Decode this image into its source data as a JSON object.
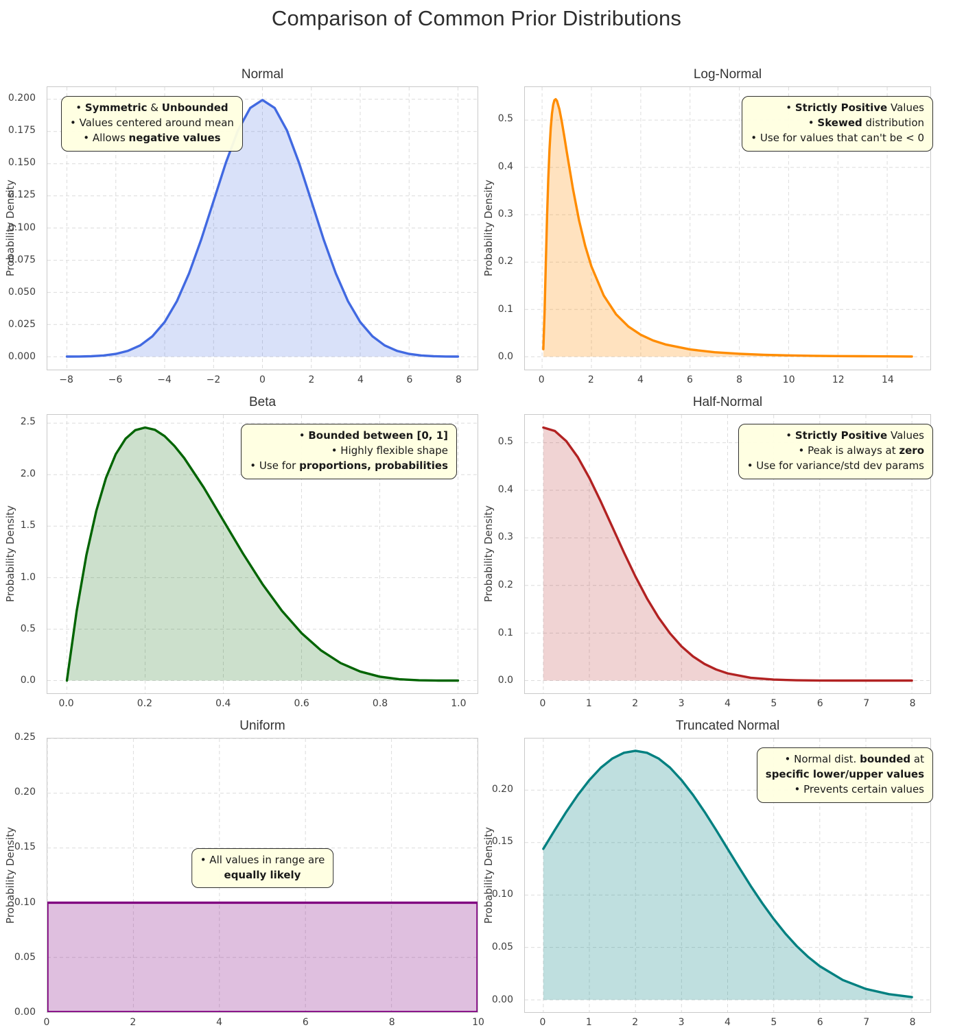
{
  "title": "Comparison of Common Prior Distributions",
  "chart_data": [
    {
      "id": "normal",
      "type": "area",
      "title": "Normal",
      "xlabel": "",
      "ylabel": "Probability Density",
      "line_color": "#4169e1",
      "fill_opacity": 0.2,
      "grid": true,
      "legend": false,
      "xlim": [
        -8.8,
        8.8
      ],
      "ylim": [
        -0.01,
        0.2095
      ],
      "xticks": [
        -8,
        -6,
        -4,
        -2,
        0,
        2,
        4,
        6,
        8
      ],
      "xtick_labels": [
        "−8",
        "−6",
        "−4",
        "−2",
        "0",
        "2",
        "4",
        "6",
        "8"
      ],
      "yticks": [
        0,
        0.025,
        0.05,
        0.075,
        0.1,
        0.125,
        0.15,
        0.175,
        0.2
      ],
      "ytick_labels": [
        "0.000",
        "0.025",
        "0.050",
        "0.075",
        "0.100",
        "0.125",
        "0.150",
        "0.175",
        "0.200"
      ],
      "x": [
        -8,
        -7.5,
        -7,
        -6.5,
        -6,
        -5.5,
        -5,
        -4.5,
        -4,
        -3.5,
        -3,
        -2.5,
        -2,
        -1.5,
        -1,
        -0.5,
        0,
        0.5,
        1,
        1.5,
        2,
        2.5,
        3,
        3.5,
        4,
        4.5,
        5,
        5.5,
        6,
        6.5,
        7,
        7.5,
        8
      ],
      "y": [
        0.0001,
        0.0002,
        0.0004,
        0.001,
        0.0022,
        0.0046,
        0.0088,
        0.0159,
        0.027,
        0.0431,
        0.0648,
        0.0913,
        0.121,
        0.1506,
        0.176,
        0.1933,
        0.1995,
        0.1933,
        0.176,
        0.1506,
        0.121,
        0.0913,
        0.0648,
        0.0431,
        0.027,
        0.0159,
        0.0088,
        0.0046,
        0.0022,
        0.001,
        0.0004,
        0.0002,
        0.0001
      ],
      "annotation": {
        "align": "center",
        "lines": [
          [
            {
              "t": "• "
            },
            {
              "t": "Symmetric",
              "b": true
            },
            {
              "t": " & "
            },
            {
              "t": "Unbounded",
              "b": true
            }
          ],
          [
            {
              "t": "• Values centered around mean"
            }
          ],
          [
            {
              "t": "• Allows "
            },
            {
              "t": "negative values",
              "b": true
            }
          ]
        ]
      }
    },
    {
      "id": "lognormal",
      "type": "area",
      "title": "Log-Normal",
      "xlabel": "",
      "ylabel": "Probability Density",
      "line_color": "#ff8c00",
      "fill_opacity": 0.25,
      "grid": true,
      "legend": false,
      "xlim": [
        -0.7,
        15.75
      ],
      "ylim": [
        -0.0271,
        0.5696
      ],
      "xticks": [
        0,
        2,
        4,
        6,
        8,
        10,
        12,
        14
      ],
      "xtick_labels": [
        "0",
        "2",
        "4",
        "6",
        "8",
        "10",
        "12",
        "14"
      ],
      "yticks": [
        0,
        0.1,
        0.2,
        0.3,
        0.4,
        0.5
      ],
      "ytick_labels": [
        "0.0",
        "0.1",
        "0.2",
        "0.3",
        "0.4",
        "0.5"
      ],
      "x": [
        0.05,
        0.1,
        0.15,
        0.2,
        0.25,
        0.3,
        0.35,
        0.4,
        0.45,
        0.5,
        0.55,
        0.6,
        0.7,
        0.8,
        0.9,
        1,
        1.25,
        1.5,
        1.75,
        2,
        2.5,
        3,
        3.5,
        4,
        4.5,
        5,
        6,
        7,
        8,
        9,
        10,
        11,
        12,
        13,
        14,
        15
      ],
      "y": [
        0.016,
        0.0927,
        0.1956,
        0.294,
        0.3752,
        0.4376,
        0.483,
        0.5137,
        0.5324,
        0.542,
        0.544,
        0.5408,
        0.523,
        0.496,
        0.465,
        0.4325,
        0.3545,
        0.2879,
        0.2339,
        0.1908,
        0.1292,
        0.0898,
        0.0639,
        0.0465,
        0.0345,
        0.026,
        0.0155,
        0.0096,
        0.0063,
        0.0042,
        0.0029,
        0.002,
        0.0015,
        0.0011,
        0.0008,
        0.0006
      ],
      "annotation": {
        "align": "right",
        "lines": [
          [
            {
              "t": "• "
            },
            {
              "t": "Strictly Positive",
              "b": true
            },
            {
              "t": " Values"
            }
          ],
          [
            {
              "t": "• "
            },
            {
              "t": "Skewed",
              "b": true
            },
            {
              "t": " distribution"
            }
          ],
          [
            {
              "t": "• Use for values that can't be < 0"
            }
          ]
        ]
      }
    },
    {
      "id": "beta",
      "type": "area",
      "title": "Beta",
      "xlabel": "",
      "ylabel": "Probability Density",
      "line_color": "#006400",
      "fill_opacity": 0.2,
      "grid": true,
      "legend": false,
      "xlim": [
        -0.05,
        1.05
      ],
      "ylim": [
        -0.1229,
        2.5805
      ],
      "xticks": [
        0,
        0.2,
        0.4,
        0.6,
        0.8,
        1
      ],
      "xtick_labels": [
        "0.0",
        "0.2",
        "0.4",
        "0.6",
        "0.8",
        "1.0"
      ],
      "yticks": [
        0,
        0.5,
        1,
        1.5,
        2,
        2.5
      ],
      "ytick_labels": [
        "0.0",
        "0.5",
        "1.0",
        "1.5",
        "2.0",
        "2.5"
      ],
      "x": [
        0,
        0.025,
        0.05,
        0.075,
        0.1,
        0.125,
        0.15,
        0.175,
        0.2,
        0.225,
        0.25,
        0.275,
        0.3,
        0.35,
        0.4,
        0.45,
        0.5,
        0.55,
        0.6,
        0.65,
        0.7,
        0.75,
        0.8,
        0.85,
        0.9,
        0.95,
        1
      ],
      "y": [
        0,
        0.6778,
        1.2218,
        1.6472,
        1.9683,
        2.198,
        2.349,
        2.4321,
        2.4576,
        2.4351,
        2.3731,
        2.279,
        2.1609,
        1.8744,
        1.5552,
        1.2354,
        0.9375,
        0.6767,
        0.4608,
        0.2926,
        0.1701,
        0.0879,
        0.0384,
        0.0129,
        0.0027,
        0.0002,
        0
      ],
      "annotation": {
        "align": "right",
        "lines": [
          [
            {
              "t": "• "
            },
            {
              "t": "Bounded between [0, 1]",
              "b": true
            }
          ],
          [
            {
              "t": "• Highly flexible shape"
            }
          ],
          [
            {
              "t": "• Use for "
            },
            {
              "t": "proportions, probabilities",
              "b": true
            }
          ]
        ]
      }
    },
    {
      "id": "halfnormal",
      "type": "area",
      "title": "Half-Normal",
      "xlabel": "",
      "ylabel": "Probability Density",
      "line_color": "#b22222",
      "fill_opacity": 0.2,
      "grid": true,
      "legend": false,
      "xlim": [
        -0.4,
        8.4
      ],
      "ylim": [
        -0.0266,
        0.5585
      ],
      "xticks": [
        0,
        1,
        2,
        3,
        4,
        5,
        6,
        7,
        8
      ],
      "xtick_labels": [
        "0",
        "1",
        "2",
        "3",
        "4",
        "5",
        "6",
        "7",
        "8"
      ],
      "yticks": [
        0,
        0.1,
        0.2,
        0.3,
        0.4,
        0.5
      ],
      "ytick_labels": [
        "0.0",
        "0.1",
        "0.2",
        "0.3",
        "0.4",
        "0.5"
      ],
      "x": [
        0,
        0.25,
        0.5,
        0.75,
        1,
        1.25,
        1.5,
        1.75,
        2,
        2.25,
        2.5,
        2.75,
        3,
        3.25,
        3.5,
        3.75,
        4,
        4.5,
        5,
        5.5,
        6,
        6.5,
        7,
        7.5,
        8
      ],
      "y": [
        0.5319,
        0.5246,
        0.5031,
        0.4694,
        0.4259,
        0.3758,
        0.3226,
        0.2693,
        0.2187,
        0.1727,
        0.1327,
        0.0991,
        0.072,
        0.0508,
        0.0349,
        0.0234,
        0.0152,
        0.0059,
        0.0021,
        0.0006,
        0.0002,
        0.0001,
        0,
        0,
        0
      ],
      "annotation": {
        "align": "right",
        "lines": [
          [
            {
              "t": "• "
            },
            {
              "t": "Strictly Positive",
              "b": true
            },
            {
              "t": " Values"
            }
          ],
          [
            {
              "t": "• Peak is always at "
            },
            {
              "t": "zero",
              "b": true
            }
          ],
          [
            {
              "t": "• Use for variance/std dev params"
            }
          ]
        ]
      }
    },
    {
      "id": "uniform",
      "type": "area",
      "title": "Uniform",
      "xlabel": "",
      "ylabel": "Probability Density",
      "line_color": "#800080",
      "fill_opacity": 0.25,
      "grid": true,
      "legend": false,
      "closed": true,
      "xlim": [
        0,
        10
      ],
      "ylim": [
        0,
        0.25
      ],
      "xticks": [
        0,
        2,
        4,
        6,
        8,
        10
      ],
      "xtick_labels": [
        "0",
        "2",
        "4",
        "6",
        "8",
        "10"
      ],
      "yticks": [
        0,
        0.05,
        0.1,
        0.15,
        0.2,
        0.25
      ],
      "ytick_labels": [
        "0.00",
        "0.05",
        "0.10",
        "0.15",
        "0.20",
        "0.25"
      ],
      "x": [
        0,
        10
      ],
      "y": [
        0.1,
        0.1
      ],
      "annotation": {
        "align": "center",
        "lines": [
          [
            {
              "t": "• All values in range are"
            }
          ],
          [
            {
              "t": "equally likely",
              "b": true
            }
          ]
        ]
      }
    },
    {
      "id": "truncnormal",
      "type": "area",
      "title": "Truncated Normal",
      "xlabel": "",
      "ylabel": "Probability Density",
      "line_color": "#008080",
      "fill_opacity": 0.25,
      "grid": true,
      "legend": false,
      "xlim": [
        -0.4,
        8.4
      ],
      "ylim": [
        -0.0117,
        0.2492
      ],
      "xticks": [
        0,
        1,
        2,
        3,
        4,
        5,
        6,
        7,
        8
      ],
      "xtick_labels": [
        "0",
        "1",
        "2",
        "3",
        "4",
        "5",
        "6",
        "7",
        "8"
      ],
      "yticks": [
        0,
        0.05,
        0.1,
        0.15,
        0.2
      ],
      "ytick_labels": [
        "0.00",
        "0.05",
        "0.10",
        "0.15",
        "0.20"
      ],
      "x": [
        0,
        0.25,
        0.5,
        0.75,
        1,
        1.25,
        1.5,
        1.75,
        2,
        2.25,
        2.5,
        2.75,
        3,
        3.25,
        3.5,
        3.75,
        4,
        4.25,
        4.5,
        4.75,
        5,
        5.25,
        5.5,
        5.75,
        6,
        6.5,
        7,
        7.5,
        8
      ],
      "y": [
        0.144,
        0.162,
        0.1793,
        0.1954,
        0.2096,
        0.2214,
        0.2302,
        0.2356,
        0.2375,
        0.2356,
        0.2302,
        0.2214,
        0.2096,
        0.1954,
        0.1793,
        0.162,
        0.144,
        0.1262,
        0.1087,
        0.0923,
        0.0771,
        0.0634,
        0.0513,
        0.0409,
        0.0321,
        0.0189,
        0.0104,
        0.0054,
        0.0026
      ],
      "annotation": {
        "align": "right",
        "lines": [
          [
            {
              "t": "• Normal dist. "
            },
            {
              "t": "bounded",
              "b": true
            },
            {
              "t": " at"
            }
          ],
          [
            {
              "t": "specific lower/upper values",
              "b": true
            }
          ],
          [
            {
              "t": "• Prevents certain values"
            }
          ]
        ]
      }
    }
  ]
}
